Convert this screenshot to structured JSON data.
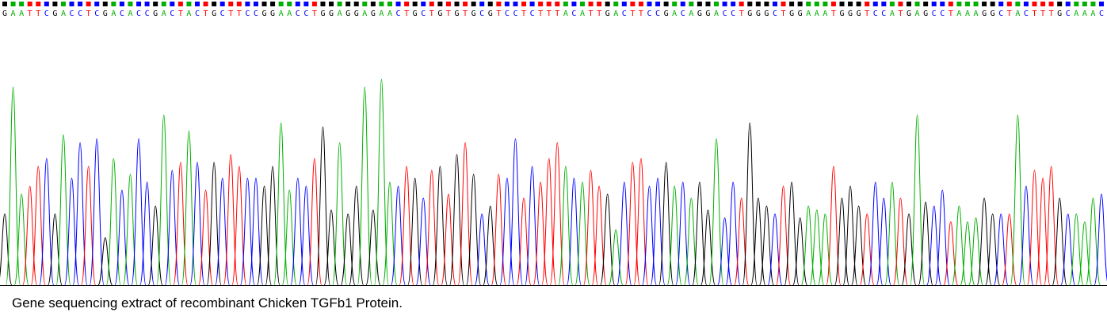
{
  "chart_data": {
    "type": "chromatogram",
    "caption": "Gene sequencing extract of recombinant Chicken TGFb1 Protein.",
    "base_colors": {
      "A": "#00b000",
      "C": "#0000ff",
      "G": "#000000",
      "T": "#ff0000"
    },
    "categories": [
      "G",
      "A",
      "A",
      "T",
      "T",
      "C",
      "G",
      "A",
      "C",
      "C",
      "T",
      "C",
      "G",
      "A",
      "C",
      "A",
      "C",
      "C",
      "G",
      "A",
      "C",
      "T",
      "A",
      "C",
      "T",
      "G",
      "C",
      "T",
      "T",
      "C",
      "C",
      "G",
      "G",
      "A",
      "A",
      "C",
      "C",
      "T",
      "G",
      "G",
      "A",
      "G",
      "G",
      "A",
      "G",
      "A",
      "A",
      "C",
      "T",
      "G",
      "C",
      "T",
      "G",
      "T",
      "G",
      "T",
      "G",
      "C",
      "G",
      "T",
      "C",
      "C",
      "T",
      "C",
      "T",
      "T",
      "T",
      "A",
      "C",
      "A",
      "T",
      "T",
      "G",
      "A",
      "C",
      "T",
      "T",
      "C",
      "C",
      "G",
      "A",
      "C",
      "A",
      "G",
      "G",
      "A",
      "C",
      "C",
      "T",
      "G",
      "G",
      "G",
      "C",
      "T",
      "G",
      "G",
      "A",
      "A",
      "A",
      "T",
      "G",
      "G",
      "G",
      "T",
      "C",
      "C",
      "A",
      "T",
      "G",
      "A",
      "G",
      "C",
      "C",
      "T",
      "A",
      "A",
      "A",
      "G",
      "G",
      "C",
      "T",
      "A",
      "C",
      "T",
      "T",
      "T",
      "G",
      "C",
      "A",
      "A",
      "A",
      "C"
    ],
    "values": [
      90,
      250,
      115,
      125,
      150,
      160,
      90,
      190,
      135,
      180,
      150,
      185,
      60,
      160,
      120,
      140,
      185,
      130,
      100,
      215,
      145,
      155,
      195,
      155,
      120,
      155,
      135,
      165,
      150,
      135,
      135,
      125,
      150,
      205,
      120,
      135,
      125,
      160,
      200,
      95,
      180,
      90,
      125,
      250,
      95,
      260,
      130,
      125,
      150,
      135,
      110,
      145,
      150,
      115,
      165,
      180,
      140,
      90,
      100,
      140,
      135,
      185,
      110,
      150,
      130,
      160,
      180,
      150,
      135,
      130,
      145,
      125,
      115,
      70,
      130,
      155,
      160,
      125,
      135,
      155,
      125,
      130,
      110,
      130,
      95,
      185,
      85,
      130,
      110,
      205,
      110,
      100,
      90,
      125,
      130,
      85,
      100,
      95,
      90,
      150,
      110,
      125,
      100,
      90,
      130,
      110,
      130,
      110,
      90,
      215,
      105,
      100,
      120,
      80,
      100,
      80,
      85,
      110,
      90,
      90,
      90,
      215,
      125,
      145,
      135,
      150,
      110,
      90,
      90,
      80,
      110,
      115
    ]
  }
}
